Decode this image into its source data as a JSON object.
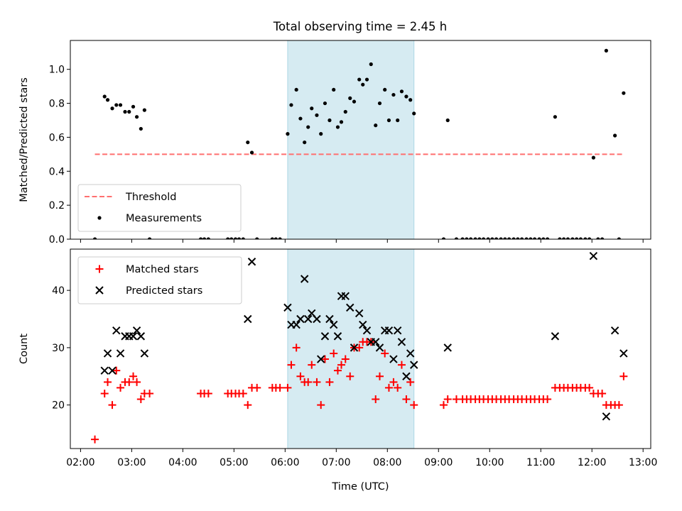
{
  "title": "Total observing time = 2.45 h",
  "chart_data": [
    {
      "type": "scatter",
      "ylabel": "Matched/Predicted stars",
      "xlim": [
        1.8,
        13.15
      ],
      "ylim": [
        0,
        1.17
      ],
      "yticks": [
        0.0,
        0.2,
        0.4,
        0.6,
        0.8,
        1.0
      ],
      "ytick_labels": [
        "0.0",
        "0.2",
        "0.4",
        "0.6",
        "0.8",
        "1.0"
      ],
      "shaded_span": {
        "x": [
          6.05,
          8.52
        ],
        "color": "#add8e6"
      },
      "legend": {
        "position": "lower-left",
        "entries": [
          {
            "label": "Threshold",
            "kind": "dashed-line",
            "color": "#ff6f6f"
          },
          {
            "label": "Measurements",
            "kind": "dot",
            "color": "#000000"
          }
        ]
      },
      "series": [
        {
          "name": "Threshold",
          "kind": "dashed-line",
          "color": "#ff6f6f",
          "x": [
            2.28,
            12.62
          ],
          "y": [
            0.5,
            0.5
          ]
        },
        {
          "name": "Measurements",
          "kind": "dot",
          "color": "#000000",
          "x": [
            2.28,
            2.47,
            2.53,
            2.62,
            2.7,
            2.78,
            2.87,
            2.95,
            3.03,
            3.1,
            3.18,
            3.25,
            3.35,
            4.35,
            4.42,
            4.5,
            4.88,
            4.95,
            5.03,
            5.1,
            5.18,
            5.27,
            5.35,
            5.45,
            5.75,
            5.82,
            5.9,
            6.05,
            6.12,
            6.22,
            6.3,
            6.38,
            6.45,
            6.52,
            6.62,
            6.7,
            6.78,
            6.87,
            6.95,
            7.03,
            7.1,
            7.18,
            7.27,
            7.35,
            7.45,
            7.52,
            7.6,
            7.68,
            7.77,
            7.85,
            7.95,
            8.03,
            8.12,
            8.2,
            8.28,
            8.37,
            8.45,
            8.52,
            9.1,
            9.18,
            9.35,
            9.47,
            9.55,
            9.63,
            9.72,
            9.8,
            9.88,
            9.97,
            10.05,
            10.13,
            10.22,
            10.3,
            10.38,
            10.47,
            10.55,
            10.63,
            10.72,
            10.8,
            10.88,
            10.97,
            11.05,
            11.13,
            11.28,
            11.37,
            11.45,
            11.53,
            11.62,
            11.7,
            11.78,
            11.87,
            11.95,
            12.03,
            12.12,
            12.2,
            12.28,
            12.45,
            12.53,
            12.62
          ],
          "y": [
            0,
            0.84,
            0.82,
            0.77,
            0.79,
            0.79,
            0.75,
            0.75,
            0.78,
            0.72,
            0.65,
            0.76,
            0,
            0,
            0,
            0,
            0,
            0,
            0,
            0,
            0,
            0.57,
            0.51,
            0,
            0,
            0,
            0,
            0.62,
            0.79,
            0.88,
            0.71,
            0.57,
            0.66,
            0.77,
            0.73,
            0.62,
            0.8,
            0.7,
            0.88,
            0.66,
            0.69,
            0.75,
            0.83,
            0.81,
            0.94,
            0.91,
            0.94,
            1.03,
            0.67,
            0.8,
            0.88,
            0.7,
            0.85,
            0.7,
            0.87,
            0.84,
            0.82,
            0.74,
            0,
            0.7,
            0,
            0,
            0,
            0,
            0,
            0,
            0,
            0,
            0,
            0,
            0,
            0,
            0,
            0,
            0,
            0,
            0,
            0,
            0,
            0,
            0,
            0,
            0.72,
            0,
            0,
            0,
            0,
            0,
            0,
            0,
            0,
            0.48,
            0,
            0,
            1.11,
            0.61,
            0,
            0.86
          ]
        }
      ]
    },
    {
      "type": "scatter",
      "ylabel": "Count",
      "xlabel": "Time (UTC)",
      "xlim": [
        1.8,
        13.15
      ],
      "ylim": [
        12.4,
        47.2
      ],
      "yticks": [
        20,
        30,
        40
      ],
      "ytick_labels": [
        "20",
        "30",
        "40"
      ],
      "xticks": [
        2,
        3,
        4,
        5,
        6,
        7,
        8,
        9,
        10,
        11,
        12,
        13
      ],
      "xtick_labels": [
        "02:00",
        "03:00",
        "04:00",
        "05:00",
        "06:00",
        "07:00",
        "08:00",
        "09:00",
        "10:00",
        "11:00",
        "12:00",
        "13:00"
      ],
      "shaded_span": {
        "x": [
          6.05,
          8.52
        ],
        "color": "#add8e6"
      },
      "legend": {
        "position": "upper-left",
        "entries": [
          {
            "label": "Matched stars",
            "kind": "plus",
            "color": "#ff0000"
          },
          {
            "label": "Predicted stars",
            "kind": "x",
            "color": "#000000"
          }
        ]
      },
      "series": [
        {
          "name": "Matched stars",
          "kind": "plus",
          "color": "#ff0000",
          "x": [
            2.28,
            2.47,
            2.53,
            2.62,
            2.7,
            2.78,
            2.87,
            2.95,
            3.03,
            3.1,
            3.18,
            3.25,
            3.35,
            4.35,
            4.42,
            4.5,
            4.88,
            4.95,
            5.03,
            5.1,
            5.18,
            5.27,
            5.35,
            5.45,
            5.75,
            5.82,
            5.9,
            6.05,
            6.12,
            6.22,
            6.3,
            6.38,
            6.45,
            6.52,
            6.62,
            6.7,
            6.78,
            6.87,
            6.95,
            7.03,
            7.1,
            7.18,
            7.27,
            7.35,
            7.45,
            7.52,
            7.6,
            7.68,
            7.77,
            7.85,
            7.95,
            8.03,
            8.12,
            8.2,
            8.28,
            8.37,
            8.45,
            8.52,
            9.1,
            9.18,
            9.35,
            9.47,
            9.55,
            9.63,
            9.72,
            9.8,
            9.88,
            9.97,
            10.05,
            10.13,
            10.22,
            10.3,
            10.38,
            10.47,
            10.55,
            10.63,
            10.72,
            10.8,
            10.88,
            10.97,
            11.05,
            11.13,
            11.28,
            11.37,
            11.45,
            11.53,
            11.62,
            11.7,
            11.78,
            11.87,
            11.95,
            12.03,
            12.12,
            12.2,
            12.28,
            12.37,
            12.45,
            12.53,
            12.62
          ],
          "y": [
            14,
            22,
            24,
            20,
            26,
            23,
            24,
            24,
            25,
            24,
            21,
            22,
            22,
            22,
            22,
            22,
            22,
            22,
            22,
            22,
            22,
            20,
            23,
            23,
            23,
            23,
            23,
            23,
            27,
            30,
            25,
            24,
            24,
            27,
            24,
            20,
            28,
            24,
            29,
            26,
            27,
            28,
            25,
            30,
            30,
            31,
            31,
            31,
            21,
            25,
            29,
            23,
            24,
            23,
            27,
            21,
            24,
            20,
            20,
            21,
            21,
            21,
            21,
            21,
            21,
            21,
            21,
            21,
            21,
            21,
            21,
            21,
            21,
            21,
            21,
            21,
            21,
            21,
            21,
            21,
            21,
            21,
            23,
            23,
            23,
            23,
            23,
            23,
            23,
            23,
            23,
            22,
            22,
            22,
            20,
            20,
            20,
            20,
            25
          ]
        },
        {
          "name": "Predicted stars",
          "kind": "x",
          "color": "#000000",
          "x": [
            2.47,
            2.53,
            2.62,
            2.7,
            2.78,
            2.87,
            2.95,
            3.03,
            3.1,
            3.18,
            3.25,
            5.27,
            5.35,
            6.05,
            6.12,
            6.22,
            6.3,
            6.38,
            6.45,
            6.52,
            6.62,
            6.7,
            6.78,
            6.87,
            6.95,
            7.03,
            7.1,
            7.18,
            7.27,
            7.35,
            7.45,
            7.52,
            7.6,
            7.68,
            7.77,
            7.85,
            7.95,
            8.03,
            8.12,
            8.2,
            8.28,
            8.37,
            8.45,
            8.52,
            9.18,
            11.28,
            12.03,
            12.28,
            12.45,
            12.62
          ],
          "y": [
            26,
            29,
            26,
            33,
            29,
            32,
            32,
            32,
            33,
            32,
            29,
            35,
            45,
            37,
            34,
            34,
            35,
            42,
            35,
            36,
            35,
            28,
            32,
            35,
            34,
            32,
            39,
            39,
            37,
            30,
            36,
            34,
            33,
            31,
            31,
            30,
            33,
            33,
            28,
            33,
            31,
            25,
            29,
            27,
            30,
            32,
            46,
            18,
            33,
            29
          ]
        }
      ]
    }
  ]
}
